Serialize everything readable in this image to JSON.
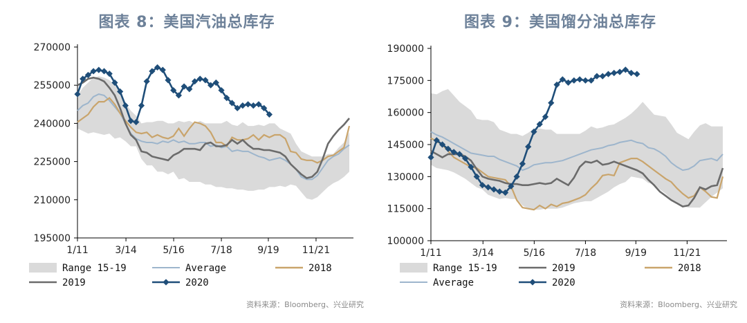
{
  "chart_data": [
    {
      "type": "line",
      "title": "图表 8：美国汽油总库存",
      "source": "资料来源：Bloomberg、兴业研究",
      "ylim": [
        195000,
        270000
      ],
      "yticks": [
        270000,
        255000,
        240000,
        225000,
        210000,
        195000
      ],
      "xticks": [
        "1/11",
        "3/14",
        "5/16",
        "7/18",
        "9/19",
        "11/21"
      ],
      "xlim": [
        1,
        52
      ],
      "legend": [
        "Range 15-19",
        "Average",
        "2018",
        "2019",
        "2020"
      ],
      "colors": {
        "range": "#dadada",
        "average": "#9db5cc",
        "y2018": "#c9a46b",
        "y2019": "#6b6b6b",
        "y2020": "#1f4e79"
      },
      "range_low": [
        238000,
        237000,
        236000,
        236500,
        236000,
        235500,
        236000,
        234000,
        234500,
        233000,
        231000,
        231000,
        226000,
        223500,
        223500,
        221000,
        221000,
        220000,
        221000,
        218000,
        218500,
        217000,
        217000,
        217000,
        216000,
        216000,
        215000,
        215000,
        214500,
        214500,
        214000,
        214000,
        213500,
        213500,
        214000,
        214000,
        215000,
        215000,
        215500,
        215000,
        216000,
        215500,
        213000,
        210500,
        210000,
        211000,
        213000,
        215000,
        216500,
        217500,
        219000,
        221000
      ],
      "range_high": [
        251000,
        254000,
        256000,
        258000,
        258500,
        258000,
        257000,
        255000,
        252000,
        248000,
        245000,
        243000,
        240000,
        240500,
        240500,
        241000,
        241000,
        240000,
        240000,
        241000,
        240500,
        241000,
        240000,
        241000,
        240000,
        240000,
        240000,
        240000,
        241000,
        239500,
        239000,
        240500,
        239000,
        239000,
        239500,
        239000,
        240000,
        240000,
        238000,
        237000,
        236000,
        232000,
        229000,
        228000,
        227000,
        227000,
        227000,
        228000,
        228000,
        230500,
        232500,
        236500
      ],
      "average": [
        245000,
        247000,
        248000,
        250500,
        251500,
        251000,
        249000,
        246500,
        244000,
        240000,
        236000,
        234000,
        233000,
        232500,
        232500,
        232000,
        233000,
        232500,
        233500,
        232500,
        233000,
        232000,
        232000,
        232500,
        232500,
        231000,
        231500,
        230500,
        231000,
        229000,
        229500,
        229000,
        229000,
        228000,
        227000,
        226500,
        225500,
        226000,
        226500,
        225500,
        224000,
        222000,
        219000,
        218000,
        218000,
        219500,
        222500,
        225500,
        227000,
        228000,
        230000,
        231500
      ],
      "y2018": [
        240500,
        242000,
        243500,
        246500,
        248500,
        248500,
        250000,
        247500,
        244000,
        241000,
        238500,
        236500,
        236000,
        236500,
        234500,
        235500,
        234500,
        234000,
        235000,
        238000,
        235000,
        238000,
        240500,
        240000,
        239000,
        236500,
        232500,
        232500,
        231000,
        234500,
        233500,
        233500,
        234000,
        235500,
        233500,
        235500,
        234500,
        235500,
        235500,
        234000,
        229000,
        228500,
        226000,
        225500,
        225500,
        224500,
        225500,
        227000,
        227500,
        229000,
        230500,
        239000
      ],
      "y2019": [
        255000,
        256000,
        257500,
        258000,
        257500,
        256500,
        254000,
        251000,
        246000,
        240000,
        235500,
        233500,
        229000,
        228500,
        227000,
        226500,
        226000,
        225500,
        227500,
        228500,
        230000,
        230000,
        230000,
        229500,
        232000,
        232500,
        231000,
        231000,
        231500,
        233500,
        232000,
        233500,
        231500,
        230000,
        230000,
        229500,
        229500,
        229000,
        228500,
        227000,
        224000,
        222000,
        220000,
        218500,
        219000,
        221000,
        226000,
        232000,
        235000,
        237500,
        239500,
        242000
      ]
    },
    {
      "type": "line",
      "title": "图表 9：美国馏分油总库存",
      "source": "资料来源：Bloomberg、兴业研究",
      "ylim": [
        100000,
        190000
      ],
      "yticks": [
        190000,
        175000,
        160000,
        145000,
        130000,
        115000,
        100000
      ],
      "xticks": [
        "1/11",
        "3/14",
        "5/16",
        "7/18",
        "9/19",
        "11/21"
      ],
      "xlim": [
        1,
        52
      ],
      "legend": [
        "Range 15-19",
        "2019",
        "2018",
        "Average",
        "2020"
      ],
      "colors": {
        "range": "#dadada",
        "average": "#9db5cc",
        "y2018": "#c9a46b",
        "y2019": "#6b6b6b",
        "y2020": "#1f4e79"
      },
      "range_low": [
        135500,
        134000,
        133500,
        133000,
        132000,
        130500,
        129000,
        127000,
        125000,
        124000,
        121500,
        120500,
        119500,
        120000,
        119500,
        119500,
        116500,
        115000,
        114500,
        114500,
        115000,
        115000,
        115000,
        115500,
        116500,
        117500,
        118000,
        118500,
        118500,
        120000,
        121500,
        123000,
        125000,
        126500,
        127500,
        130000,
        129500,
        129000,
        127000,
        126500,
        124000,
        122000,
        119500,
        118000,
        116000,
        115500,
        115500,
        115500,
        118000,
        120500,
        122500,
        124500
      ],
      "range_high": [
        169000,
        168500,
        170000,
        171000,
        168000,
        165000,
        163000,
        161000,
        157000,
        156500,
        156500,
        155500,
        152000,
        151000,
        150000,
        150000,
        149000,
        150500,
        152500,
        152500,
        152000,
        152000,
        150000,
        150000,
        150000,
        150000,
        150000,
        151500,
        153500,
        152500,
        153000,
        154000,
        154500,
        156000,
        157500,
        159500,
        162000,
        165000,
        162000,
        159000,
        158500,
        158000,
        154500,
        150500,
        149000,
        147500,
        151000,
        154000,
        155000,
        153500,
        153500,
        153500
      ],
      "average": [
        151000,
        149500,
        148500,
        147000,
        145500,
        144000,
        142500,
        141000,
        140500,
        140000,
        139500,
        139500,
        138000,
        137000,
        136000,
        135000,
        133000,
        134000,
        135500,
        136000,
        136500,
        136500,
        137000,
        137500,
        138500,
        139500,
        140500,
        141500,
        142500,
        143000,
        143500,
        144500,
        145000,
        146000,
        146500,
        147000,
        146000,
        145500,
        143500,
        143000,
        141500,
        139500,
        136500,
        134500,
        133000,
        133500,
        135000,
        137500,
        138000,
        138500,
        137500,
        140500
      ],
      "y2018": [
        148000,
        146500,
        145000,
        142000,
        139000,
        137500,
        136000,
        134500,
        134000,
        132000,
        130000,
        129500,
        129000,
        128500,
        125500,
        119000,
        115500,
        115000,
        114500,
        116500,
        115000,
        117000,
        116000,
        117500,
        118000,
        119000,
        120000,
        121500,
        124500,
        127000,
        130500,
        131000,
        130500,
        136500,
        137500,
        138500,
        138500,
        137000,
        135000,
        133000,
        131000,
        129000,
        127500,
        124500,
        122000,
        120000,
        121000,
        125000,
        123000,
        120500,
        120000,
        130000
      ],
      "y2019": [
        142000,
        140500,
        139000,
        140500,
        140500,
        140500,
        139500,
        137500,
        133500,
        130000,
        129000,
        128500,
        128000,
        127000,
        126500,
        126500,
        126000,
        126000,
        126500,
        127000,
        126500,
        127000,
        129000,
        127500,
        126000,
        129500,
        134500,
        137000,
        136500,
        137500,
        135500,
        136000,
        137000,
        136000,
        135000,
        134000,
        133000,
        131500,
        128500,
        126000,
        123000,
        121000,
        119000,
        117500,
        116000,
        116500,
        120000,
        125000,
        124000,
        125500,
        126000,
        134000
      ],
      "y2020": [
        139000,
        147000,
        145000,
        143000,
        141500,
        140500,
        138500,
        134500,
        130000,
        126000,
        125000,
        124000,
        123000,
        122500,
        125500,
        130000,
        136000,
        144000,
        151000,
        154500,
        158000,
        164500,
        173000,
        175500,
        174000,
        175000,
        175500,
        175000,
        175000,
        177000,
        177000,
        178000,
        178500,
        179000,
        180000,
        178500,
        178000
      ]
    }
  ]
}
